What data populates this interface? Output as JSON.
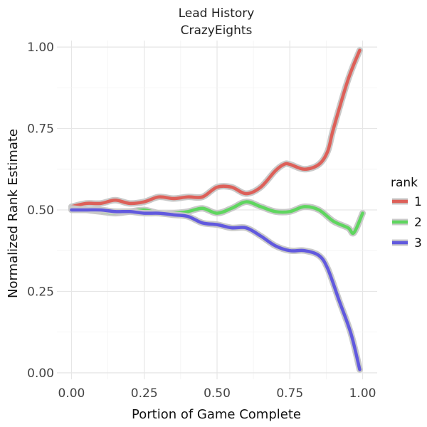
{
  "chart_data": {
    "type": "line",
    "title": "Lead History",
    "subtitle": "CrazyEights",
    "xlabel": "Portion of Game Complete",
    "ylabel": "Normalized Rank Estimate",
    "xlim": [
      -0.05,
      1.05
    ],
    "ylim": [
      -0.02,
      1.02
    ],
    "x_ticks": [
      0,
      0.25,
      0.5,
      0.75,
      1
    ],
    "x_tick_labels": [
      "0.00",
      "0.25",
      "0.50",
      "0.75",
      "1.00"
    ],
    "y_ticks": [
      0,
      0.25,
      0.5,
      0.75,
      1
    ],
    "y_tick_labels": [
      "0.00",
      "0.25",
      "0.50",
      "0.75",
      "1.00"
    ],
    "grid": true,
    "legend": {
      "title": "rank",
      "placement": "right"
    },
    "series": [
      {
        "name": "1",
        "color": "#dd6059",
        "x": [
          0,
          0.05,
          0.1,
          0.15,
          0.2,
          0.25,
          0.3,
          0.35,
          0.4,
          0.45,
          0.5,
          0.55,
          0.6,
          0.65,
          0.7,
          0.73,
          0.75,
          0.8,
          0.85,
          0.88,
          0.9,
          0.95,
          0.99
        ],
        "y": [
          0.51,
          0.52,
          0.52,
          0.53,
          0.52,
          0.525,
          0.54,
          0.535,
          0.54,
          0.54,
          0.57,
          0.57,
          0.55,
          0.57,
          0.62,
          0.64,
          0.64,
          0.625,
          0.64,
          0.68,
          0.75,
          0.9,
          0.99
        ]
      },
      {
        "name": "2",
        "color": "#5fd65f",
        "x": [
          0,
          0.05,
          0.1,
          0.15,
          0.2,
          0.25,
          0.3,
          0.35,
          0.4,
          0.45,
          0.5,
          0.55,
          0.6,
          0.65,
          0.7,
          0.75,
          0.8,
          0.85,
          0.9,
          0.95,
          0.97,
          1.0
        ],
        "y": [
          0.505,
          0.5,
          0.495,
          0.49,
          0.495,
          0.5,
          0.49,
          0.49,
          0.495,
          0.505,
          0.49,
          0.505,
          0.525,
          0.51,
          0.495,
          0.495,
          0.51,
          0.5,
          0.465,
          0.445,
          0.43,
          0.49
        ]
      },
      {
        "name": "3",
        "color": "#6159de",
        "x": [
          0,
          0.05,
          0.1,
          0.15,
          0.2,
          0.25,
          0.3,
          0.35,
          0.4,
          0.45,
          0.5,
          0.55,
          0.6,
          0.65,
          0.7,
          0.75,
          0.8,
          0.85,
          0.88,
          0.92,
          0.96,
          0.99
        ],
        "y": [
          0.5,
          0.5,
          0.5,
          0.495,
          0.495,
          0.49,
          0.49,
          0.485,
          0.48,
          0.46,
          0.455,
          0.445,
          0.445,
          0.42,
          0.39,
          0.375,
          0.375,
          0.36,
          0.32,
          0.22,
          0.12,
          0.01
        ]
      }
    ]
  }
}
